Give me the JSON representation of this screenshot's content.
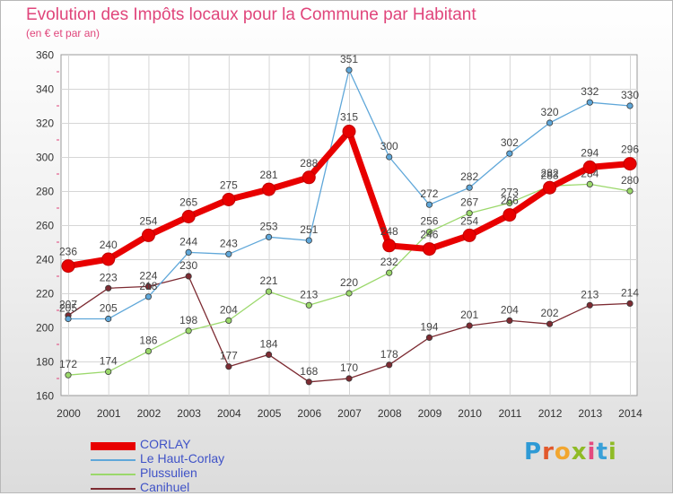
{
  "title": "Evolution des Impôts locaux pour la Commune par Habitant",
  "subtitle": "(en € et par an)",
  "logo": {
    "letters": [
      "P",
      "r",
      "o",
      "x",
      "i",
      "t",
      "i"
    ],
    "colors": [
      "#2e9ad5",
      "#e2592c",
      "#f2a62f",
      "#8fbb26",
      "#e44a7f",
      "#3aa0d8",
      "#8fbb26"
    ]
  },
  "chart_data": {
    "type": "line",
    "title": "Evolution des Impôts locaux pour la Commune par Habitant",
    "subtitle": "(en € et par an)",
    "x": [
      "2000",
      "2001",
      "2002",
      "2003",
      "2004",
      "2005",
      "2006",
      "2007",
      "2008",
      "2009",
      "2010",
      "2011",
      "2012",
      "2013",
      "2014"
    ],
    "y_ticks": [
      "160",
      "180",
      "200",
      "220",
      "240",
      "260",
      "280",
      "300",
      "320",
      "340",
      "360"
    ],
    "ylim": [
      160,
      360
    ],
    "grid": true,
    "legend_position": "bottom-left",
    "series": [
      {
        "name": "CORLAY",
        "color": "#e80000",
        "values": [
          236,
          240,
          254,
          265,
          275,
          281,
          288,
          315,
          248,
          246,
          254,
          266,
          282,
          294,
          296
        ],
        "labels": [
          "236",
          "240",
          "254",
          "265",
          "275",
          "281",
          "288",
          "315",
          "248",
          "246",
          "254",
          "266",
          "282",
          "294",
          "296"
        ]
      },
      {
        "name": "Le Haut-Corlay",
        "color": "#5fa7d9",
        "values": [
          205,
          205,
          218,
          244,
          243,
          253,
          251,
          351,
          300,
          272,
          282,
          302,
          320,
          332,
          330
        ],
        "labels": [
          "205",
          "205",
          "218",
          "244",
          "243",
          "253",
          "251",
          "351",
          "300",
          "272",
          "282",
          "302",
          "320",
          "332",
          "330"
        ]
      },
      {
        "name": "Plussulien",
        "color": "#9bd86b",
        "values": [
          172,
          174,
          186,
          198,
          204,
          221,
          213,
          220,
          232,
          256,
          267,
          273,
          283,
          284,
          280
        ],
        "labels": [
          "172",
          "174",
          "186",
          "198",
          "204",
          "221",
          "213",
          "220",
          "232",
          "256",
          "267",
          "273",
          "283",
          "284",
          "280"
        ]
      },
      {
        "name": "Canihuel",
        "color": "#7d2b32",
        "values": [
          207,
          223,
          224,
          230,
          177,
          184,
          168,
          170,
          178,
          194,
          201,
          204,
          202,
          213,
          214
        ],
        "labels": [
          "207",
          "223",
          "224",
          "230",
          "177",
          "184",
          "168",
          "170",
          "178",
          "194",
          "201",
          "204",
          "202",
          "213",
          "214"
        ]
      }
    ]
  }
}
